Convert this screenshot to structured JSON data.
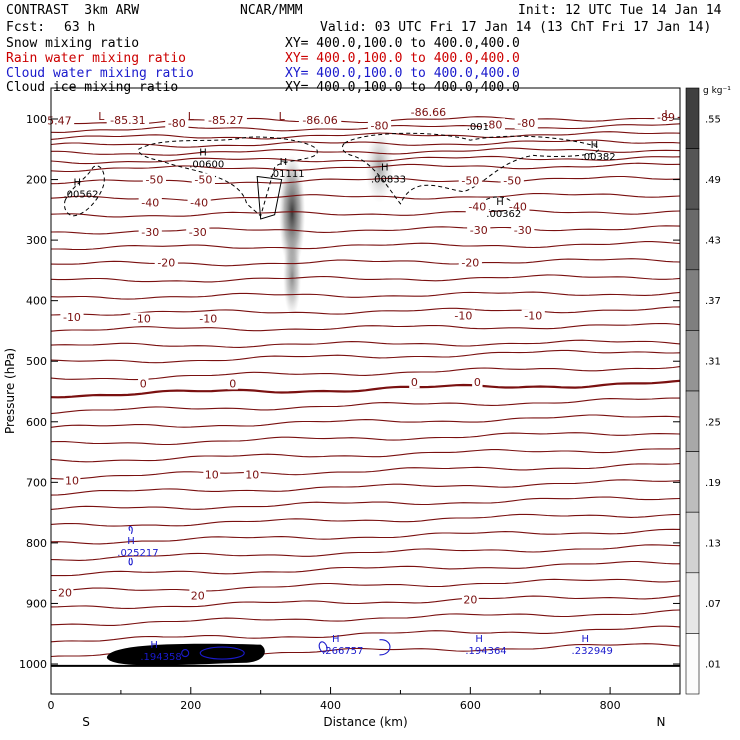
{
  "header": {
    "model": "CONTRAST  3km ARW",
    "center": "NCAR/MMM",
    "init": "Init: 12 UTC Tue 14 Jan 14",
    "fcst_label": "Fcst:",
    "fcst_value": "63 h",
    "valid": "Valid: 03 UTC Fri 17 Jan 14 (13 ChT Fri 17 Jan 14)",
    "fields": [
      {
        "name": "Snow mixing ratio",
        "xy": "XY= 400.0,100.0 to 400.0,400.0",
        "color": "#000000"
      },
      {
        "name": "Rain water mixing ratio",
        "xy": "XY= 400.0,100.0 to 400.0,400.0",
        "color": "#cc0000"
      },
      {
        "name": "Cloud water mixing ratio",
        "xy": "XY= 400.0,100.0 to 400.0,400.0",
        "color": "#1a1acc"
      },
      {
        "name": "Cloud ice mixing ratio",
        "xy": "XY= 400.0,100.0 to 400.0,400.0",
        "color": "#000000"
      }
    ]
  },
  "colors": {
    "temperature_contour": "#7a1010",
    "cloud_water": "#1a1acc",
    "ice_contour": "#000000",
    "snow_shade": "#333333"
  },
  "chart_data": {
    "type": "cross-section",
    "xlabel": "Distance (km)",
    "ylabel": "Pressure (hPa)",
    "xlim": [
      0,
      900
    ],
    "ylim": [
      1050,
      50
    ],
    "x_ticks": [
      "0",
      "200",
      "400",
      "600",
      "800"
    ],
    "y_ticks": [
      "100",
      "200",
      "300",
      "400",
      "500",
      "600",
      "700",
      "800",
      "900",
      "1000"
    ],
    "endpoints": {
      "left": "S",
      "right": "N"
    },
    "colorbar": {
      "unit": "g kg⁻¹",
      "labels": [
        ".55",
        ".49",
        ".43",
        ".37",
        ".31",
        ".25",
        ".19",
        ".13",
        ".07",
        ".01"
      ],
      "levels": [
        0.01,
        0.07,
        0.13,
        0.19,
        0.25,
        0.31,
        0.37,
        0.43,
        0.49,
        0.55
      ]
    },
    "temperature_contour_labels": [
      {
        "text": "-85.31",
        "x": 110,
        "p": 105
      },
      {
        "text": "-85.27",
        "x": 250,
        "p": 105
      },
      {
        "text": "-86.06",
        "x": 385,
        "p": 105
      },
      {
        "text": "-86.66",
        "x": 540,
        "p": 92
      },
      {
        "text": "-89",
        "x": 880,
        "p": 100
      },
      {
        "text": "5.47",
        "x": 12,
        "p": 106
      },
      {
        "text": "-80",
        "x": 180,
        "p": 110
      },
      {
        "text": "-80",
        "x": 470,
        "p": 114
      },
      {
        "text": "-80",
        "x": 633,
        "p": 112
      },
      {
        "text": "-80",
        "x": 680,
        "p": 110
      },
      {
        "text": "-50",
        "x": 148,
        "p": 203
      },
      {
        "text": "-50",
        "x": 218,
        "p": 203
      },
      {
        "text": "-50",
        "x": 600,
        "p": 205
      },
      {
        "text": "-50",
        "x": 660,
        "p": 205
      },
      {
        "text": "-40",
        "x": 142,
        "p": 241
      },
      {
        "text": "-40",
        "x": 212,
        "p": 241
      },
      {
        "text": "-40",
        "x": 610,
        "p": 248
      },
      {
        "text": "-40",
        "x": 668,
        "p": 248
      },
      {
        "text": "-30",
        "x": 142,
        "p": 290
      },
      {
        "text": "-30",
        "x": 210,
        "p": 290
      },
      {
        "text": "-30",
        "x": 612,
        "p": 287
      },
      {
        "text": "-30",
        "x": 675,
        "p": 287
      },
      {
        "text": "-20",
        "x": 165,
        "p": 340
      },
      {
        "text": "-20",
        "x": 600,
        "p": 340
      },
      {
        "text": "-10",
        "x": 30,
        "p": 430
      },
      {
        "text": "-10",
        "x": 130,
        "p": 433
      },
      {
        "text": "-10",
        "x": 225,
        "p": 433
      },
      {
        "text": "-10",
        "x": 590,
        "p": 428
      },
      {
        "text": "-10",
        "x": 690,
        "p": 428
      },
      {
        "text": "0",
        "x": 132,
        "p": 540
      },
      {
        "text": "0",
        "x": 260,
        "p": 540
      },
      {
        "text": "0",
        "x": 520,
        "p": 538
      },
      {
        "text": "0",
        "x": 610,
        "p": 538
      },
      {
        "text": "10",
        "x": 30,
        "p": 700
      },
      {
        "text": "10",
        "x": 230,
        "p": 690
      },
      {
        "text": "10",
        "x": 288,
        "p": 690
      },
      {
        "text": "20",
        "x": 20,
        "p": 885
      },
      {
        "text": "20",
        "x": 210,
        "p": 890
      },
      {
        "text": "20",
        "x": 600,
        "p": 897
      }
    ],
    "low_markers": [
      {
        "text": "L",
        "x": 72,
        "p": 95
      },
      {
        "text": "L",
        "x": 200,
        "p": 95
      },
      {
        "text": "L",
        "x": 330,
        "p": 95
      },
      {
        "text": "L",
        "x": 882,
        "p": 92
      }
    ],
    "ice_maxima": [
      {
        "text": ".00562",
        "x": 35,
        "p": 230
      },
      {
        "text": ".00600",
        "x": 215,
        "p": 180
      },
      {
        "text": ".01111",
        "x": 330,
        "p": 196
      },
      {
        "text": ".00833",
        "x": 475,
        "p": 205
      },
      {
        "text": ".00382",
        "x": 775,
        "p": 168
      },
      {
        "text": ".00362",
        "x": 640,
        "p": 262
      },
      {
        "text": ".001",
        "x": 612,
        "p": 118
      }
    ],
    "cloud_water_maxima": [
      {
        "text": ".025217",
        "x": 112,
        "p": 818
      },
      {
        "text": ".194358",
        "x": 145,
        "p": 990
      },
      {
        "text": ".266757",
        "x": 405,
        "p": 980
      },
      {
        "text": ".194364",
        "x": 610,
        "p": 980
      },
      {
        "text": ".232949",
        "x": 762,
        "p": 980
      }
    ],
    "snow_core": {
      "x": 345,
      "p_top": 170,
      "p_bottom": 420,
      "max": 0.55
    }
  }
}
